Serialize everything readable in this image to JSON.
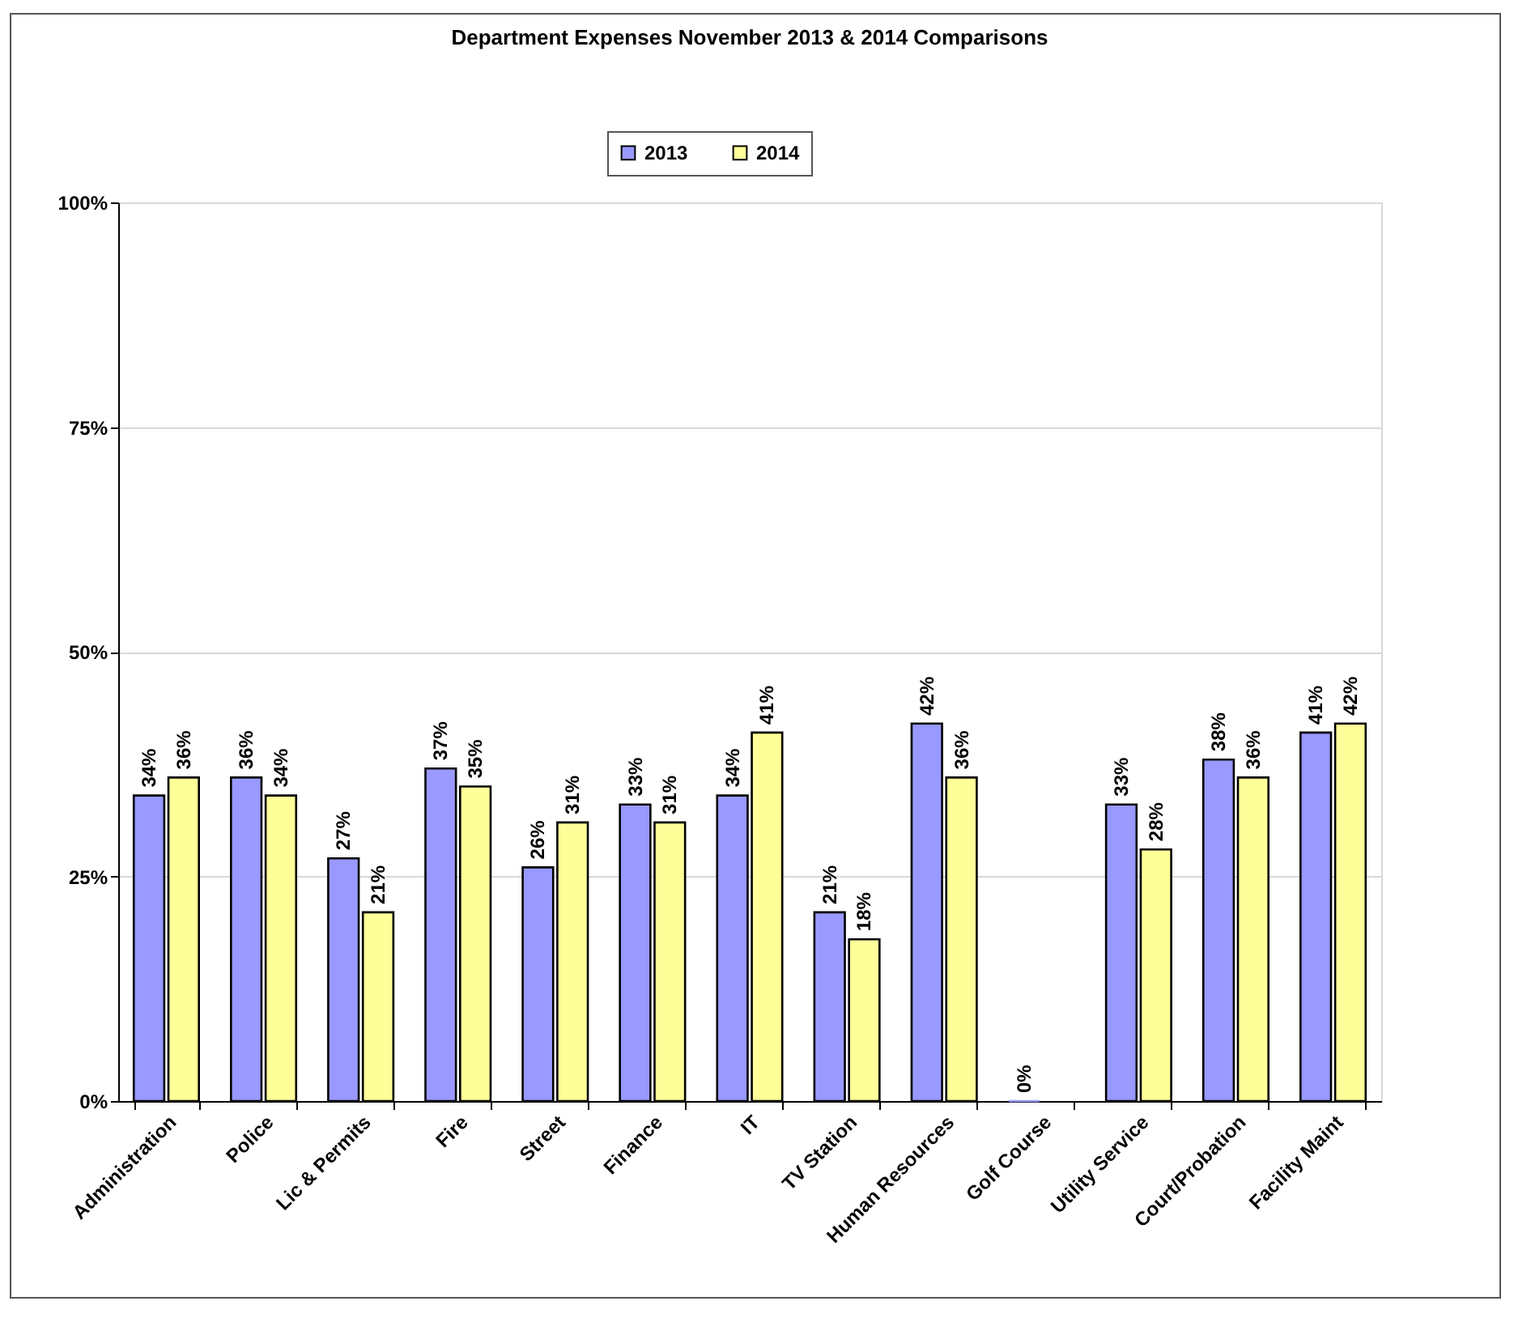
{
  "chart_data": {
    "type": "bar",
    "title": "Department Expenses November 2013 & 2014 Comparisons",
    "categories": [
      "Administration",
      "Police",
      "Lic & Permits",
      "Fire",
      "Street",
      "Finance",
      "IT",
      "TV Station",
      "Human Resources",
      "Golf Course",
      "Utility Service",
      "Court/Probation",
      "Facility Maint"
    ],
    "series": [
      {
        "name": "2013",
        "color": "#9999ff",
        "values": [
          34,
          36,
          27,
          37,
          26,
          33,
          34,
          21,
          42,
          0,
          33,
          38,
          41
        ],
        "value_labels": [
          "34%",
          "36%",
          "27%",
          "37%",
          "26%",
          "33%",
          "34%",
          "21%",
          "42%",
          "0%",
          "33%",
          "38%",
          "41%"
        ]
      },
      {
        "name": "2014",
        "color": "#ffff99",
        "values": [
          36,
          34,
          21,
          35,
          31,
          31,
          41,
          18,
          36,
          null,
          28,
          36,
          42
        ],
        "value_labels": [
          "36%",
          "34%",
          "21%",
          "35%",
          "31%",
          "31%",
          "41%",
          "18%",
          "36%",
          null,
          "28%",
          "36%",
          "42%"
        ]
      }
    ],
    "ylim": [
      0,
      100
    ],
    "yticks": [
      {
        "value": 0,
        "label": "0%"
      },
      {
        "value": 25,
        "label": "25%"
      },
      {
        "value": 50,
        "label": "50%"
      },
      {
        "value": 75,
        "label": "75%"
      },
      {
        "value": 100,
        "label": "100%"
      }
    ],
    "grid": "y",
    "legend": "top"
  }
}
